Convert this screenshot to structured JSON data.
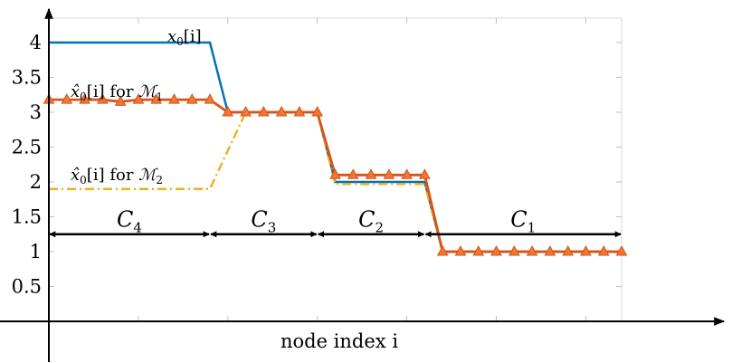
{
  "chart_data": {
    "type": "line",
    "xlabel": "node index i",
    "ylim": [
      0,
      4.35
    ],
    "xlim": [
      0,
      32
    ],
    "yticks": [
      "0.5",
      "1",
      "1.5",
      "2",
      "2.5",
      "3",
      "3.5",
      "4"
    ],
    "grid": false,
    "series": [
      {
        "name": "x0[i]",
        "label_main": "x",
        "label_sub": "0",
        "label_arg": "[i]",
        "color": "#0072BD",
        "style": "solid",
        "x": [
          0,
          9,
          10,
          15,
          16,
          21,
          22,
          32
        ],
        "y": [
          4,
          4,
          3,
          3,
          2,
          2,
          1,
          1
        ]
      },
      {
        "name": "x̂0[i] for M1",
        "label_main": "x̂",
        "label_sub": "0",
        "label_arg": "[i] for ",
        "label_set": "ℳ",
        "label_set_sub": "1",
        "color": "#D95319",
        "marker_color": "#EE7733",
        "style": "solid-triangles",
        "x": [
          0,
          1,
          2,
          3,
          4,
          5,
          6,
          7,
          8,
          9,
          10,
          11,
          12,
          13,
          14,
          15,
          16,
          17,
          18,
          19,
          20,
          21,
          22,
          23,
          24,
          25,
          26,
          27,
          28,
          29,
          30,
          31,
          32
        ],
        "y": [
          3.18,
          3.18,
          3.18,
          3.18,
          3.15,
          3.18,
          3.18,
          3.18,
          3.18,
          3.18,
          3.0,
          3.0,
          3.0,
          3.0,
          3.0,
          3.0,
          2.1,
          2.1,
          2.1,
          2.1,
          2.1,
          2.1,
          1.0,
          1.0,
          1.0,
          1.0,
          1.0,
          1.0,
          1.0,
          1.0,
          1.0,
          1.0,
          1.0
        ]
      },
      {
        "name": "x̂0[i] for M2",
        "label_main": "x̂",
        "label_sub": "0",
        "label_arg": "[i] for ",
        "label_set": "ℳ",
        "label_set_sub": "2",
        "color": "#EDB120",
        "style": "dashdot",
        "x": [
          0,
          9,
          11,
          15,
          16,
          21,
          22,
          32
        ],
        "y": [
          1.9,
          1.9,
          3.0,
          3.0,
          1.97,
          1.97,
          1.0,
          1.0
        ]
      }
    ],
    "clusters": [
      {
        "name": "C4",
        "sub": "4",
        "from": 0,
        "to": 9
      },
      {
        "name": "C3",
        "sub": "3",
        "from": 9,
        "to": 15
      },
      {
        "name": "C2",
        "sub": "2",
        "from": 15,
        "to": 21
      },
      {
        "name": "C1",
        "sub": "1",
        "from": 21,
        "to": 32
      }
    ],
    "cluster_arrow_y": 1.25
  }
}
